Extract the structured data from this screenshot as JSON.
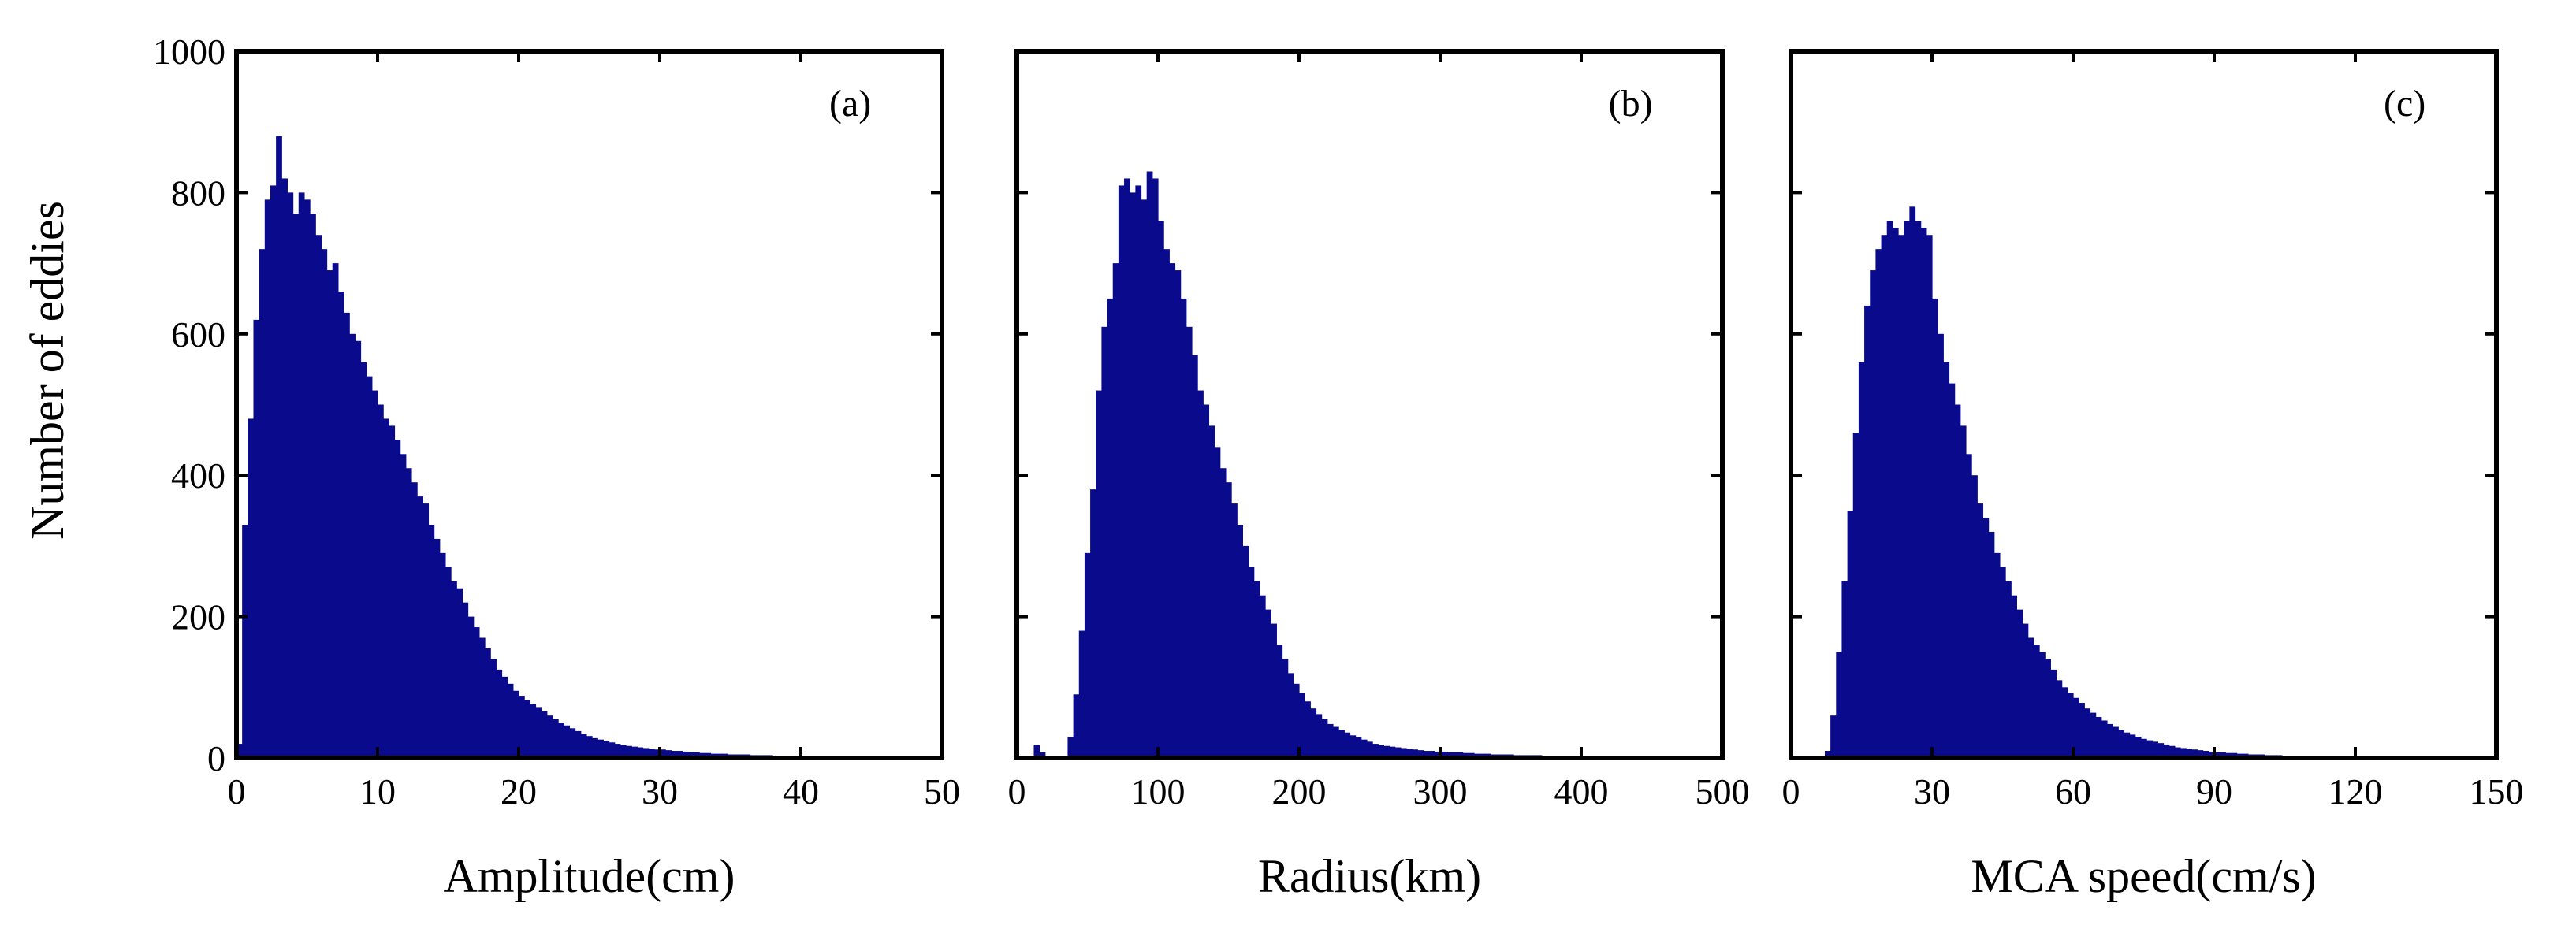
{
  "figure": {
    "ylabel": "Number of eddies",
    "fill_color": "#0a0a8c",
    "frame_color": "#000000"
  },
  "chart_data": [
    {
      "type": "bar",
      "panel": "(a)",
      "xlabel": "Amplitude(cm)",
      "ylabel": "Number of eddies",
      "xlim": [
        0,
        50
      ],
      "ylim": [
        0,
        1000
      ],
      "xticks": [
        0,
        10,
        20,
        30,
        40,
        50
      ],
      "yticks": [
        0,
        200,
        400,
        600,
        800,
        1000
      ],
      "grid": false,
      "series": [
        {
          "x": [
            0.2,
            0.6,
            1,
            1.4,
            1.8,
            2.2,
            2.6,
            3,
            3.4,
            3.8,
            4.2,
            4.6,
            5,
            5.4,
            5.8,
            6.2,
            6.6,
            7,
            7.4,
            7.8,
            8.2,
            8.6,
            9,
            9.4,
            9.8,
            10.2,
            10.6,
            11,
            11.4,
            11.8,
            12.2,
            12.6,
            13,
            13.4,
            13.8,
            14.2,
            14.6,
            15,
            15.4,
            15.8,
            16.2,
            16.6,
            17,
            17.4,
            17.8,
            18.2,
            18.6,
            19,
            19.4,
            19.8,
            20.2,
            20.6,
            21,
            21.4,
            21.8,
            22.2,
            22.6,
            23,
            23.4,
            23.8,
            24.2,
            24.6,
            25,
            25.4,
            25.8,
            26.2,
            26.6,
            27,
            27.4,
            27.8,
            28.2,
            28.6,
            29,
            29.4,
            29.8,
            30.2,
            30.6,
            31,
            31.4,
            31.8,
            32.2,
            32.6,
            33,
            33.4,
            33.8,
            34.2,
            34.6,
            35,
            35.4,
            35.8,
            36.2,
            36.6,
            37,
            37.4,
            37.8,
            38.2,
            38.6,
            39,
            39.4,
            39.8,
            40.2,
            40.6,
            41,
            41.4,
            41.8,
            42.2,
            42.6,
            43,
            43.4,
            43.8,
            44.2,
            44.6,
            45,
            45.4,
            45.8,
            46.2,
            46.6,
            47,
            47.4,
            47.8,
            48.2,
            48.6,
            49,
            49.4,
            49.8
          ],
          "values": [
            20,
            330,
            480,
            620,
            720,
            790,
            810,
            880,
            820,
            800,
            770,
            800,
            790,
            770,
            740,
            720,
            690,
            700,
            660,
            630,
            600,
            590,
            560,
            540,
            520,
            500,
            480,
            470,
            450,
            430,
            410,
            390,
            370,
            360,
            330,
            310,
            290,
            270,
            250,
            240,
            220,
            200,
            185,
            170,
            155,
            140,
            125,
            115,
            105,
            95,
            88,
            82,
            76,
            72,
            66,
            60,
            55,
            50,
            46,
            42,
            38,
            34,
            31,
            28,
            26,
            24,
            22,
            20,
            18,
            17,
            16,
            15,
            14,
            13,
            12,
            12,
            11,
            10,
            10,
            9,
            8,
            8,
            7,
            7,
            6,
            6,
            6,
            5,
            5,
            5,
            5,
            4,
            4,
            4,
            4,
            3,
            3,
            3,
            3,
            3,
            3,
            3,
            2,
            2,
            2,
            2,
            2,
            2,
            2,
            2,
            2,
            2,
            2,
            2,
            2,
            2,
            2,
            2,
            2,
            2,
            2,
            2,
            2,
            2,
            1
          ]
        }
      ]
    },
    {
      "type": "bar",
      "panel": "(b)",
      "xlabel": "Radius(km)",
      "ylabel": "",
      "xlim": [
        0,
        500
      ],
      "ylim": [
        0,
        1000
      ],
      "xticks": [
        0,
        100,
        200,
        300,
        400,
        500
      ],
      "yticks": [
        0,
        200,
        400,
        600,
        800,
        1000
      ],
      "grid": false,
      "series": [
        {
          "x": [
            2,
            6,
            10,
            14,
            18,
            22,
            26,
            30,
            34,
            38,
            42,
            46,
            50,
            54,
            58,
            62,
            66,
            70,
            74,
            78,
            82,
            86,
            90,
            94,
            98,
            102,
            106,
            110,
            114,
            118,
            122,
            126,
            130,
            134,
            138,
            142,
            146,
            150,
            154,
            158,
            162,
            166,
            170,
            174,
            178,
            182,
            186,
            190,
            194,
            198,
            202,
            206,
            210,
            214,
            218,
            222,
            226,
            230,
            234,
            238,
            242,
            246,
            250,
            254,
            258,
            262,
            266,
            270,
            274,
            278,
            282,
            286,
            290,
            294,
            298,
            302,
            306,
            310,
            314,
            318,
            322,
            326,
            330,
            334,
            338,
            342,
            346,
            350,
            354,
            358,
            362,
            366,
            370,
            374,
            378,
            382,
            386,
            390,
            394,
            398,
            402,
            406,
            410,
            414,
            418,
            422,
            426,
            430,
            434,
            438,
            442,
            446,
            450,
            454,
            458,
            462,
            466,
            470,
            474,
            478,
            482,
            486,
            490,
            494,
            498
          ],
          "values": [
            0,
            0,
            0,
            18,
            8,
            0,
            0,
            0,
            0,
            30,
            90,
            180,
            290,
            380,
            520,
            610,
            650,
            700,
            810,
            820,
            800,
            810,
            790,
            830,
            820,
            760,
            720,
            700,
            690,
            650,
            610,
            570,
            520,
            500,
            470,
            440,
            410,
            390,
            360,
            330,
            300,
            270,
            250,
            230,
            210,
            190,
            160,
            140,
            120,
            105,
            92,
            80,
            70,
            62,
            55,
            48,
            44,
            40,
            36,
            32,
            29,
            26,
            23,
            20,
            18,
            17,
            16,
            15,
            14,
            13,
            12,
            11,
            10,
            10,
            9,
            9,
            8,
            8,
            8,
            7,
            7,
            6,
            6,
            6,
            5,
            5,
            5,
            5,
            4,
            4,
            4,
            4,
            4,
            3,
            3,
            3,
            3,
            3,
            3,
            3,
            3,
            2,
            2,
            2,
            2,
            2,
            2,
            2,
            2,
            2,
            2,
            2,
            2,
            2,
            2,
            2,
            2,
            2,
            2,
            2,
            2,
            1,
            1,
            1,
            1
          ]
        }
      ]
    },
    {
      "type": "bar",
      "panel": "(c)",
      "xlabel": "MCA speed(cm/s)",
      "ylabel": "",
      "xlim": [
        0,
        150
      ],
      "ylim": [
        0,
        1000
      ],
      "xticks": [
        0,
        30,
        60,
        90,
        120,
        150
      ],
      "yticks": [
        0,
        200,
        400,
        600,
        800,
        1000
      ],
      "grid": false,
      "series": [
        {
          "x": [
            0.6,
            1.8,
            3,
            4.2,
            5.4,
            6.6,
            7.8,
            9,
            10.2,
            11.4,
            12.6,
            13.8,
            15,
            16.2,
            17.4,
            18.6,
            19.8,
            21,
            22.2,
            23.4,
            24.6,
            25.8,
            27,
            28.2,
            29.4,
            30.6,
            31.8,
            33,
            34.2,
            35.4,
            36.6,
            37.8,
            39,
            40.2,
            41.4,
            42.6,
            43.8,
            45,
            46.2,
            47.4,
            48.6,
            49.8,
            51,
            52.2,
            53.4,
            54.6,
            55.8,
            57,
            58.2,
            59.4,
            60.6,
            61.8,
            63,
            64.2,
            65.4,
            66.6,
            67.8,
            69,
            70.2,
            71.4,
            72.6,
            73.8,
            75,
            76.2,
            77.4,
            78.6,
            79.8,
            81,
            82.2,
            83.4,
            84.6,
            85.8,
            87,
            88.2,
            89.4,
            90.6,
            91.8,
            93,
            94.2,
            95.4,
            96.6,
            97.8,
            99,
            100.2,
            101.4,
            102.6,
            103.8,
            105,
            106.2,
            107.4,
            108.6,
            109.8,
            111,
            112.2,
            113.4,
            114.6,
            115.8,
            117,
            118.2,
            119.4,
            120.6,
            121.8,
            123,
            124.2,
            125.4,
            126.6,
            127.8,
            129,
            130.2,
            131.4,
            132.6,
            133.8,
            135,
            136.2,
            137.4,
            138.6,
            139.8,
            141,
            142.2,
            143.4,
            144.6,
            145.8,
            147,
            148.2,
            149.4
          ],
          "values": [
            0,
            0,
            0,
            0,
            0,
            2,
            10,
            60,
            150,
            250,
            350,
            460,
            560,
            640,
            690,
            720,
            740,
            760,
            750,
            740,
            760,
            780,
            760,
            750,
            740,
            650,
            600,
            560,
            530,
            500,
            470,
            430,
            400,
            360,
            340,
            320,
            290,
            270,
            250,
            230,
            210,
            190,
            170,
            160,
            150,
            140,
            125,
            110,
            100,
            92,
            85,
            78,
            70,
            64,
            58,
            53,
            48,
            44,
            40,
            36,
            33,
            30,
            27,
            25,
            23,
            21,
            19,
            17,
            15,
            14,
            13,
            12,
            11,
            10,
            9,
            8,
            8,
            7,
            7,
            6,
            6,
            5,
            5,
            5,
            4,
            4,
            4,
            3,
            3,
            3,
            3,
            3,
            2,
            2,
            2,
            2,
            2,
            2,
            2,
            2,
            2,
            2,
            1,
            1,
            1,
            1,
            1,
            1,
            1,
            1,
            1,
            1,
            1,
            1,
            1,
            1,
            1,
            1,
            1,
            1,
            1,
            1,
            1,
            1,
            1
          ]
        }
      ]
    }
  ]
}
